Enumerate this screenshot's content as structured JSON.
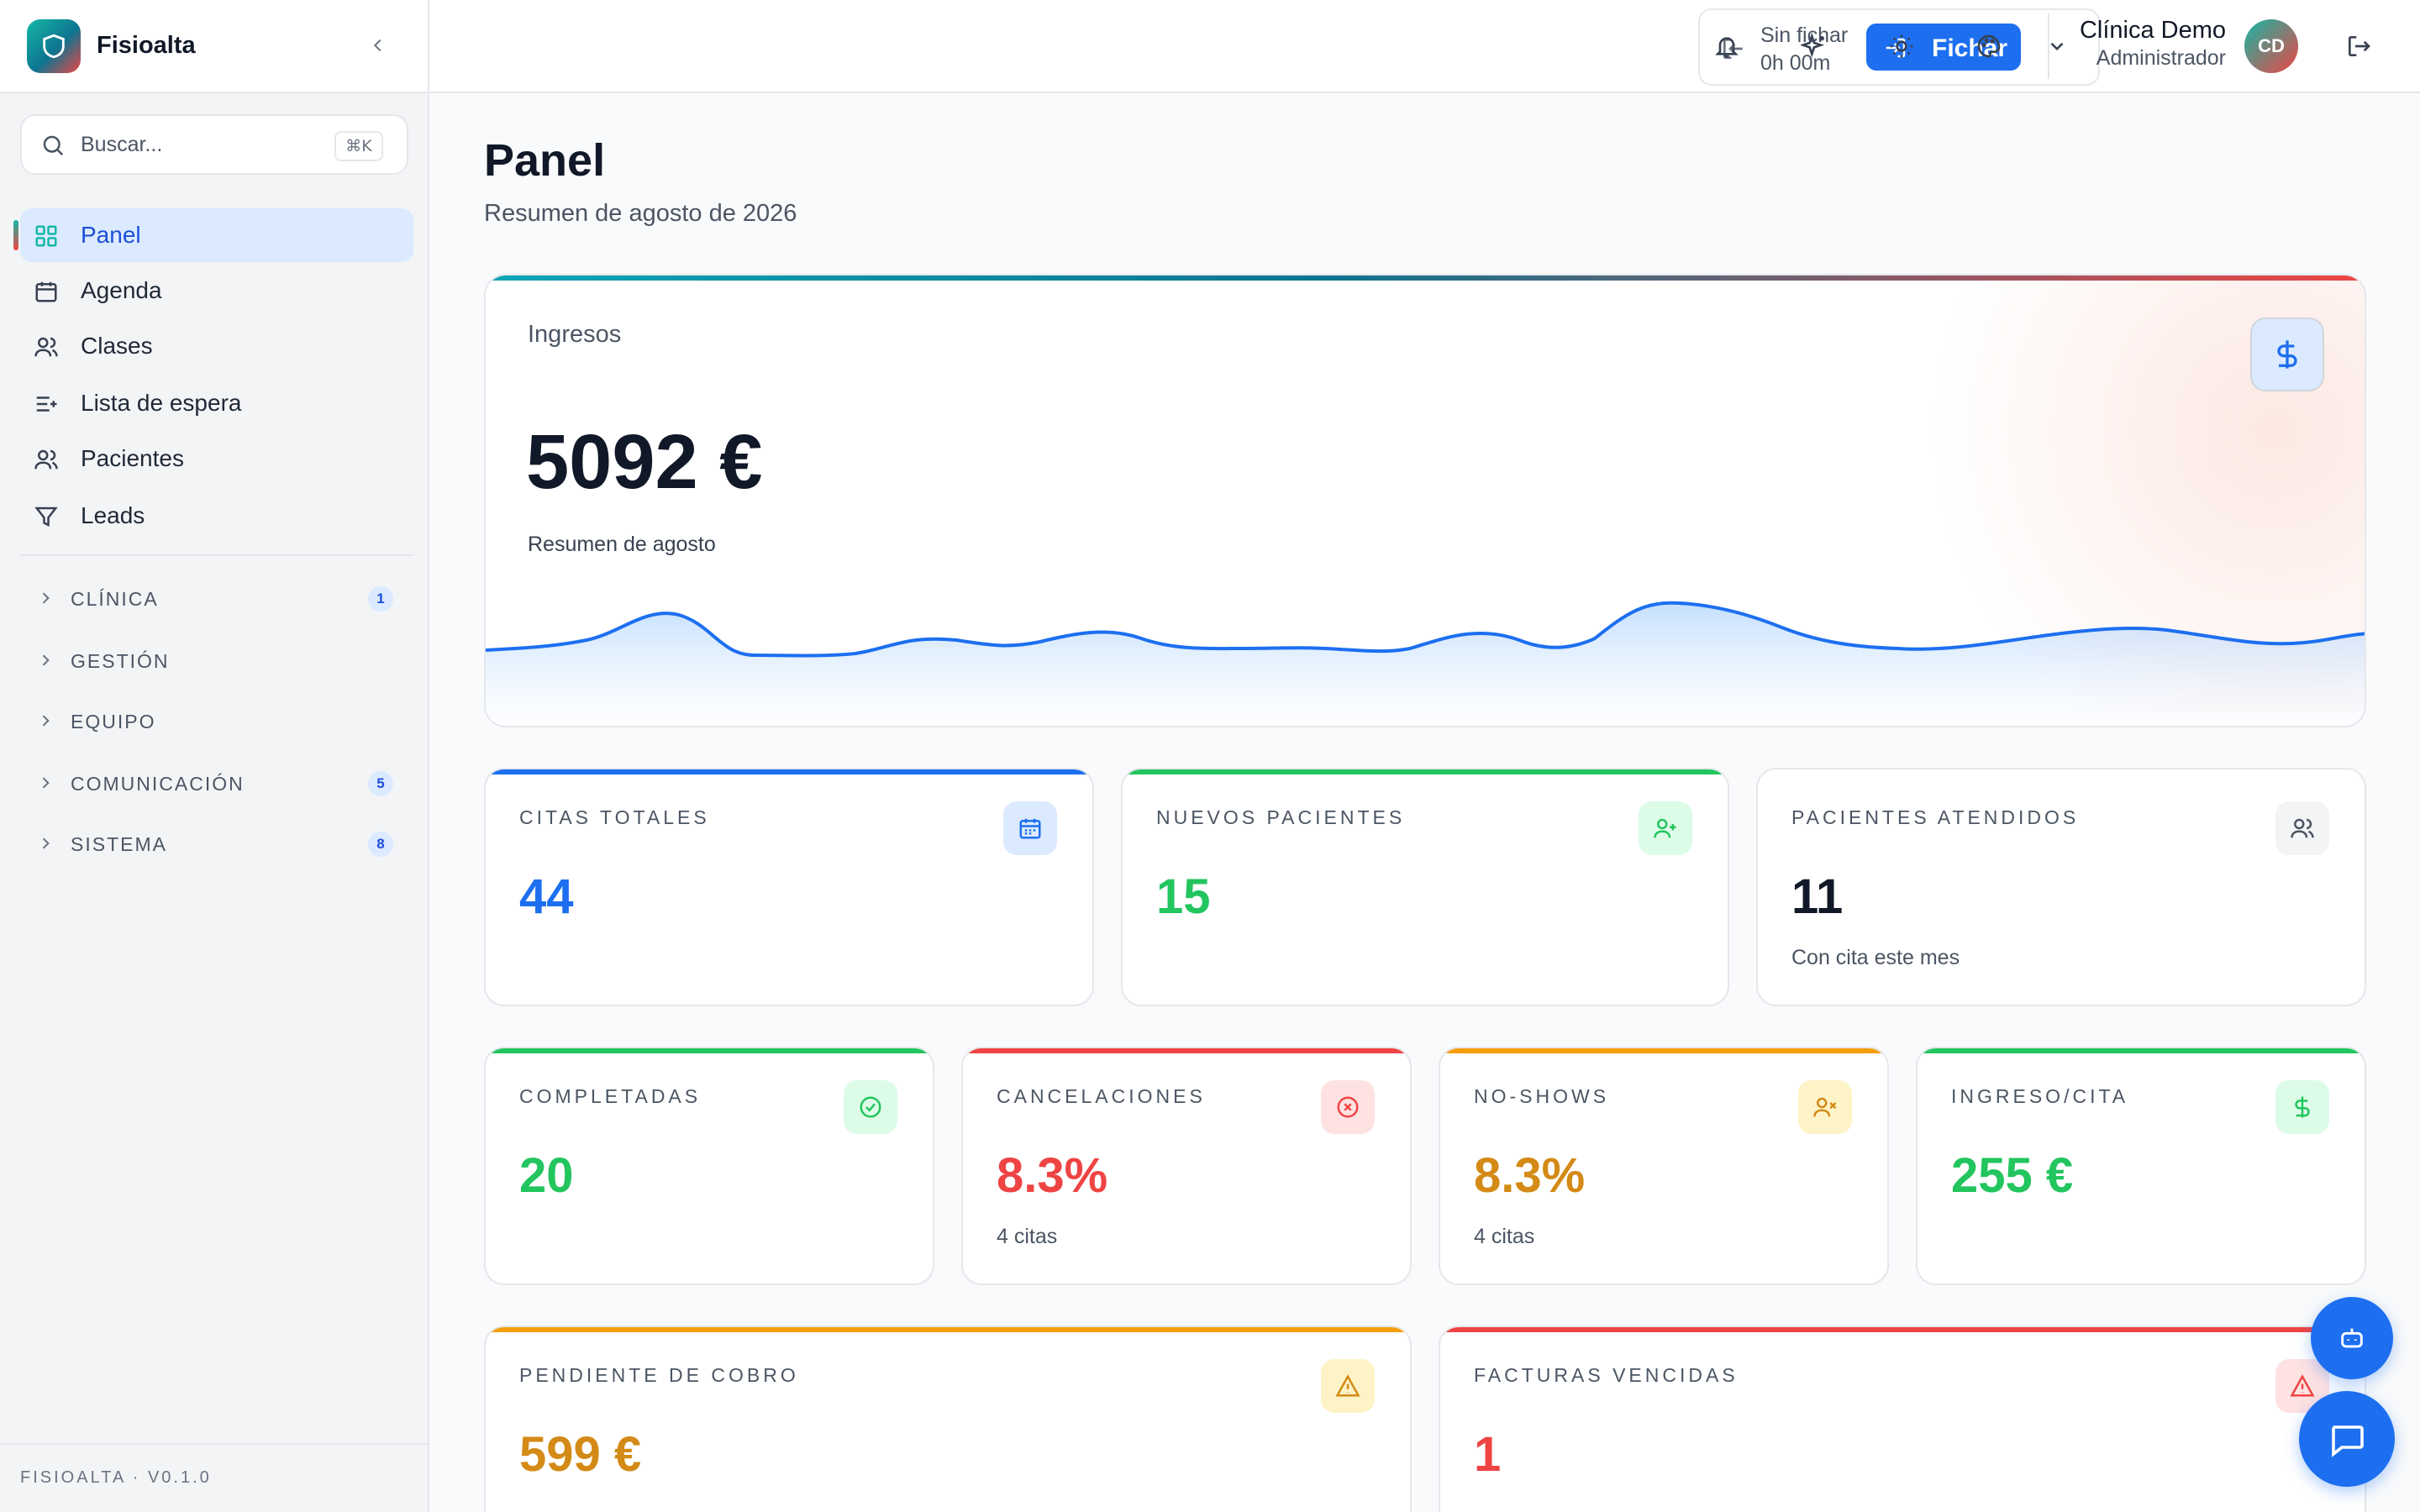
{
  "app": {
    "name": "Fisioalta",
    "version": "FISIOALTA · V0.1.0"
  },
  "search": {
    "placeholder": "Buscar...",
    "shortcut": "⌘K"
  },
  "nav": {
    "items": [
      {
        "label": "Panel",
        "icon": "dashboard-icon",
        "active": true
      },
      {
        "label": "Agenda",
        "icon": "calendar-icon"
      },
      {
        "label": "Clases",
        "icon": "users-icon"
      },
      {
        "label": "Lista de espera",
        "icon": "list-plus-icon"
      },
      {
        "label": "Pacientes",
        "icon": "users-icon"
      },
      {
        "label": "Leads",
        "icon": "filter-icon"
      }
    ],
    "groups": [
      {
        "label": "CLÍNICA",
        "badge": "1"
      },
      {
        "label": "GESTIÓN",
        "badge": ""
      },
      {
        "label": "EQUIPO",
        "badge": ""
      },
      {
        "label": "COMUNICACIÓN",
        "badge": "5"
      },
      {
        "label": "SISTEMA",
        "badge": "8"
      }
    ]
  },
  "topbar": {
    "clock_status": "Sin fichar",
    "clock_time": "0h 00m",
    "clock_button": "Fichar",
    "user_name": "Clínica Demo",
    "user_role": "Administrador",
    "user_initials": "CD"
  },
  "page": {
    "title": "Panel",
    "subtitle": "Resumen de agosto de 2026"
  },
  "hero": {
    "label": "Ingresos",
    "value": "5092 €",
    "sub": "Resumen de agosto",
    "accent": "#1d6ff0"
  },
  "stats_row1": [
    {
      "label": "CITAS TOTALES",
      "value": "44",
      "sub": "",
      "color": "#1d6ff0",
      "icon": "calendar-icon"
    },
    {
      "label": "NUEVOS PACIENTES",
      "value": "15",
      "sub": "",
      "color": "#22c55e",
      "icon": "user-plus-icon"
    },
    {
      "label": "PACIENTES ATENDIDOS",
      "value": "11",
      "sub": "Con cita este mes",
      "color": "#111827",
      "icon": "users-icon"
    }
  ],
  "stats_row2": [
    {
      "label": "COMPLETADAS",
      "value": "20",
      "sub": "",
      "color": "#22c55e",
      "icon": "check-circle-icon"
    },
    {
      "label": "CANCELACIONES",
      "value": "8.3%",
      "sub": "4 citas",
      "color": "#ef4444",
      "icon": "x-circle-icon"
    },
    {
      "label": "NO-SHOWS",
      "value": "8.3%",
      "sub": "4 citas",
      "color": "#d48a16",
      "icon": "user-x-icon"
    },
    {
      "label": "INGRESO/CITA",
      "value": "255 €",
      "sub": "",
      "color": "#22c55e",
      "icon": "dollar-icon"
    }
  ],
  "stats_row3": [
    {
      "label": "PENDIENTE DE COBRO",
      "value": "599 €",
      "sub": "",
      "color": "#d48a16",
      "icon": "alert-triangle-icon"
    },
    {
      "label": "FACTURAS VENCIDAS",
      "value": "1",
      "sub": "",
      "color": "#ef4444",
      "icon": "alert-triangle-icon"
    }
  ]
}
